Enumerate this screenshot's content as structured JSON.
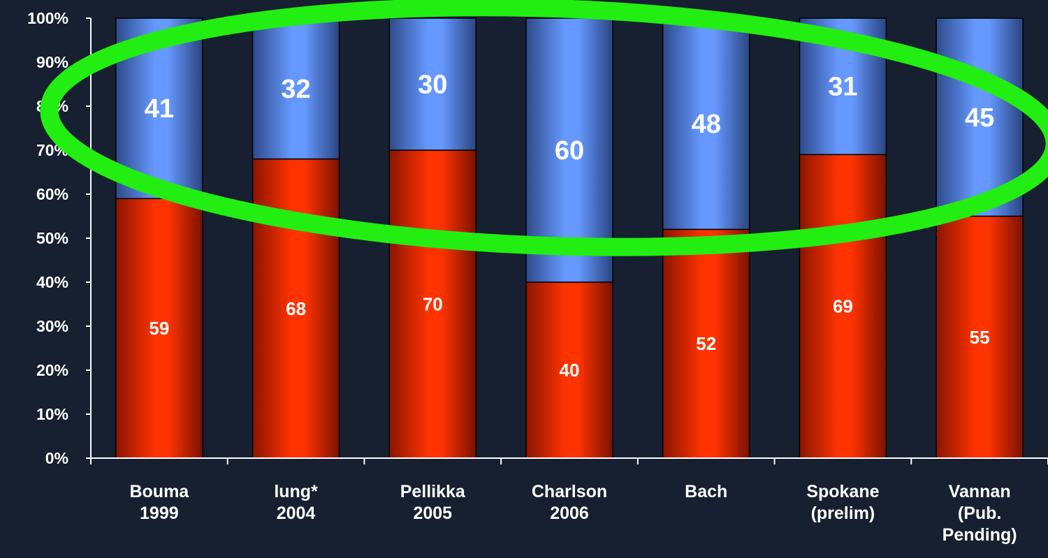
{
  "colors": {
    "background": "#162030",
    "bottom_series": "#ff3300",
    "top_series": "#6699ff",
    "highlight_ellipse": "#22ee11",
    "axis": "#ffffff"
  },
  "chart_data": {
    "type": "bar",
    "stacked": true,
    "normalized": true,
    "categories": [
      [
        "Bouma",
        "1999"
      ],
      [
        "lung*",
        "2004"
      ],
      [
        "Pellikka",
        "2005"
      ],
      [
        "Charlson",
        "2006"
      ],
      [
        "Bach"
      ],
      [
        "Spokane",
        "(prelim)"
      ],
      [
        "Vannan",
        "(Pub.",
        "Pending)"
      ]
    ],
    "series": [
      {
        "values": [
          59,
          68,
          70,
          40,
          52,
          69,
          55
        ],
        "color": "#ff3300"
      },
      {
        "values": [
          41,
          32,
          30,
          60,
          48,
          31,
          45
        ],
        "color": "#6699ff"
      }
    ],
    "y_ticks": [
      "0%",
      "10%",
      "20%",
      "30%",
      "40%",
      "50%",
      "60%",
      "70%",
      "80%",
      "90%",
      "100%"
    ],
    "ylim": [
      0,
      100
    ],
    "grid": false,
    "legend": "none",
    "annotation": {
      "shape": "ellipse",
      "highlights": "upper-series-values",
      "color": "#22ee11"
    }
  }
}
